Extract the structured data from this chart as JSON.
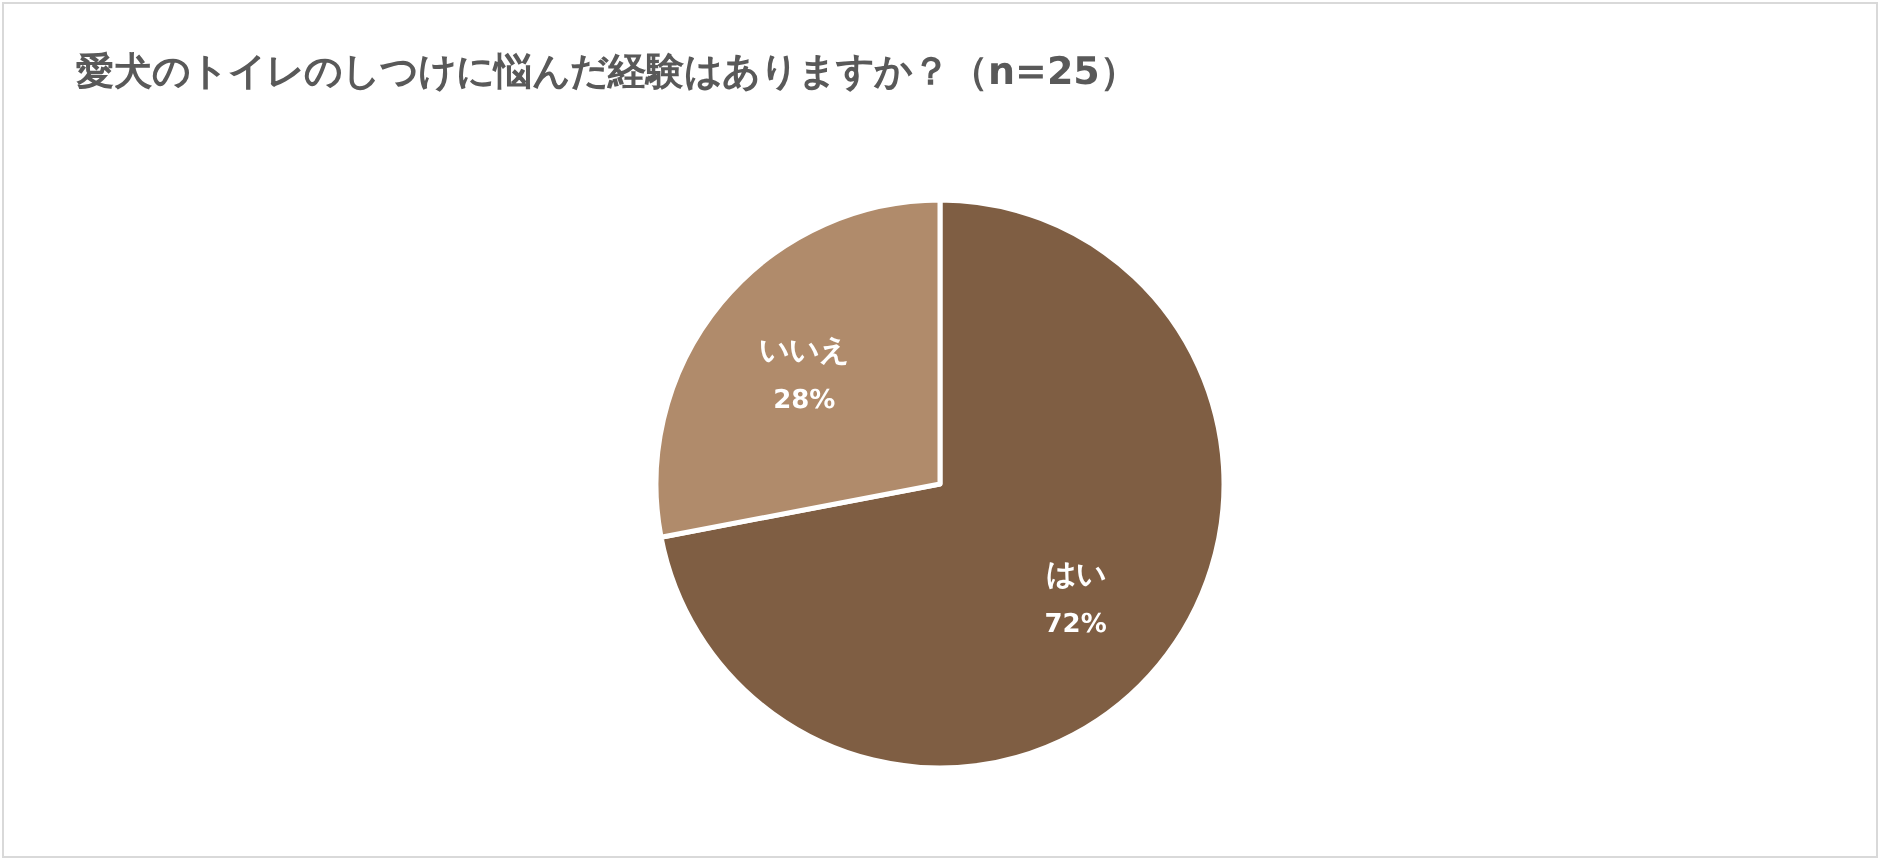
{
  "chart_data": {
    "type": "pie",
    "title": "愛犬のトイレのしつけに悩んだ経験はありますか？（n=25）",
    "categories": [
      "はい",
      "いいえ"
    ],
    "values": [
      72,
      28
    ],
    "colors": [
      "#7f5e43",
      "#b08b6b"
    ],
    "value_labels": [
      "72%",
      "28%"
    ],
    "legend": false
  }
}
